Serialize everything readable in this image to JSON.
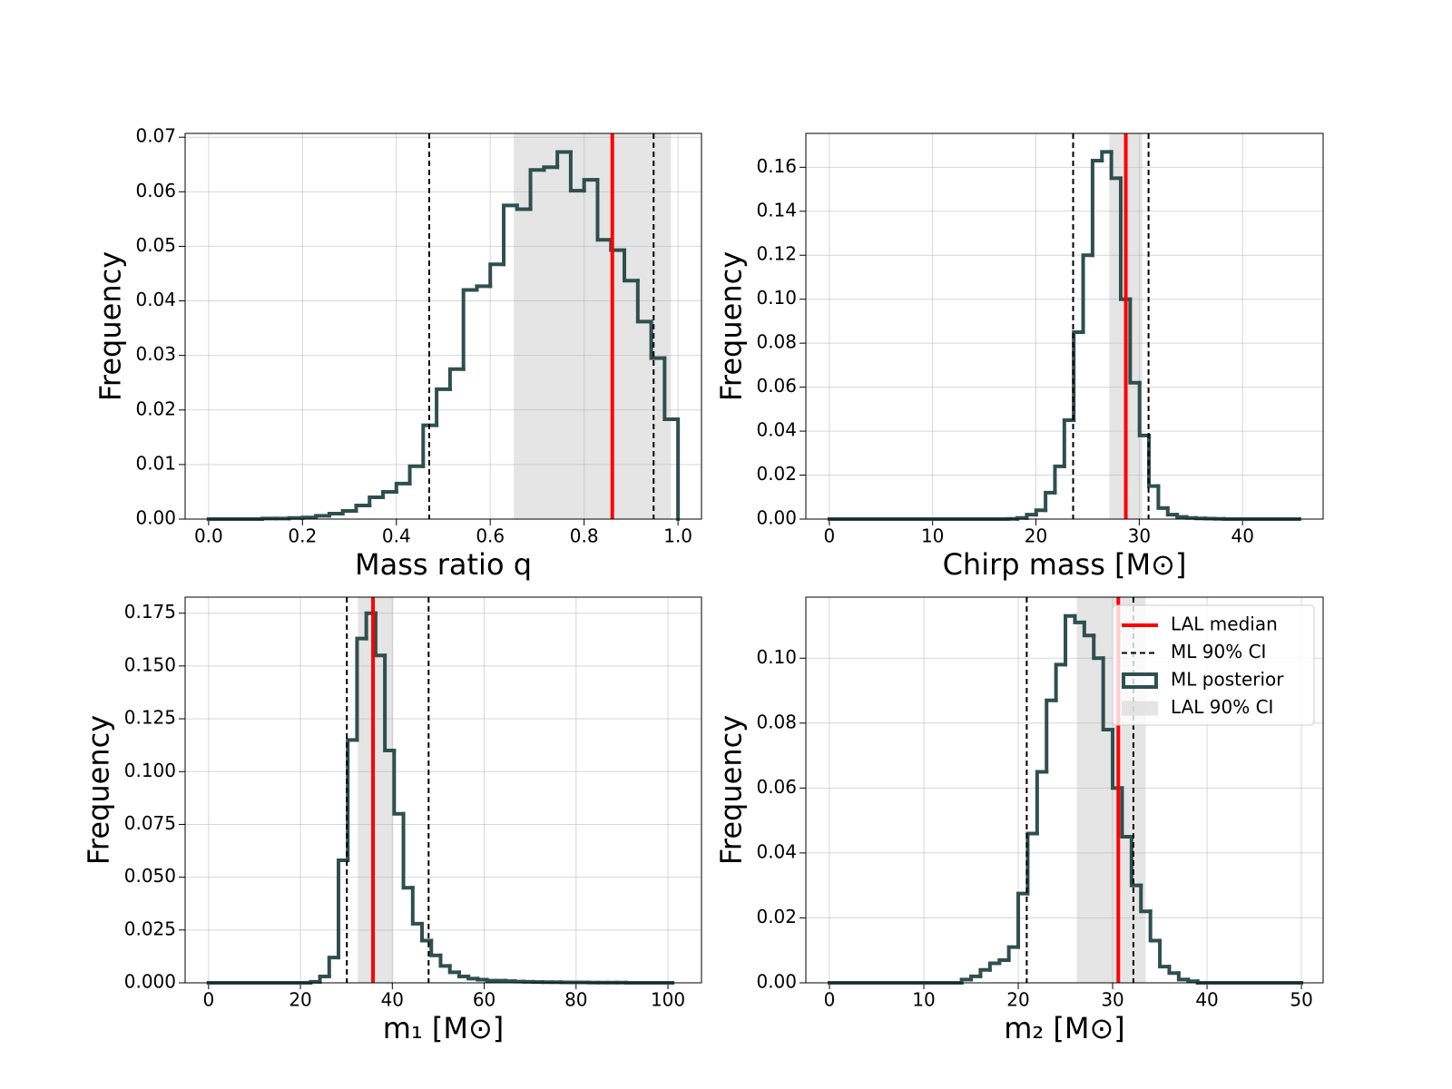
{
  "chart_data": [
    {
      "type": "histogram",
      "xlabel": "Mass ratio q",
      "ylabel": "Frequency",
      "color": "#2f4f4f",
      "grid": true,
      "bins": [
        0,
        0.0286,
        0.0571,
        0.0857,
        0.1143,
        0.1429,
        0.1714,
        0.2,
        0.2286,
        0.2571,
        0.2857,
        0.3143,
        0.3429,
        0.3714,
        0.4,
        0.4286,
        0.4571,
        0.4857,
        0.5143,
        0.5429,
        0.5714,
        0.6,
        0.6286,
        0.6571,
        0.6857,
        0.7143,
        0.7429,
        0.7714,
        0.8,
        0.8286,
        0.8571,
        0.8857,
        0.9143,
        0.9429,
        0.9714,
        1
      ],
      "values": [
        0,
        0,
        0,
        0,
        0.0001,
        0.0001,
        0.0002,
        0.0003,
        0.0006,
        0.001,
        0.0015,
        0.0025,
        0.004,
        0.005,
        0.0065,
        0.0097,
        0.0172,
        0.0238,
        0.0275,
        0.042,
        0.0427,
        0.0467,
        0.0575,
        0.0568,
        0.064,
        0.0645,
        0.0673,
        0.0602,
        0.0622,
        0.0512,
        0.0493,
        0.0437,
        0.0362,
        0.0295,
        0.0183
      ],
      "xlim": [
        -0.05,
        1.05
      ],
      "ylim": [
        0,
        0.0707
      ],
      "xticks": [
        {
          "value": 0,
          "label": "0.0"
        },
        0.2,
        0.4,
        0.6,
        0.8,
        {
          "value": 1,
          "label": "1.0"
        }
      ],
      "yticks": [
        {
          "value": 0,
          "label": "0.00"
        },
        0.01,
        0.02,
        0.03,
        0.04,
        0.05,
        0.06,
        0.07
      ],
      "median": {
        "color": "red",
        "value": 0.86
      },
      "ci": {
        "color": "black",
        "values": [
          0.47,
          0.948
        ]
      },
      "band": {
        "color": "#d3d3d3",
        "values": [
          0.65,
          0.985
        ]
      }
    },
    {
      "type": "histogram",
      "xlabel": "Chirp mass [M⊙]",
      "ylabel": "Frequency",
      "color": "#2f4f4f",
      "grid": true,
      "bins": [
        0,
        0.91,
        1.82,
        2.73,
        3.64,
        4.55,
        5.46,
        6.37,
        7.28,
        8.19,
        9.1,
        10.01,
        10.92,
        11.83,
        12.74,
        13.65,
        14.56,
        15.47,
        16.38,
        17.29,
        18.2,
        19.11,
        20.02,
        20.93,
        21.84,
        22.75,
        23.66,
        24.57,
        25.48,
        26.39,
        27.3,
        28.21,
        29.12,
        30.03,
        30.94,
        31.85,
        32.76,
        33.67,
        34.58,
        35.49,
        36.4,
        37.31,
        38.22,
        39.13,
        40.04,
        40.95,
        41.86,
        42.77,
        43.68,
        44.59,
        45.5
      ],
      "values": [
        0,
        0,
        0,
        0,
        0,
        0,
        0,
        0,
        0,
        0,
        0,
        0,
        0,
        0,
        0,
        0,
        0,
        0,
        0,
        0.0001,
        0.0005,
        0.002,
        0.004,
        0.012,
        0.024,
        0.045,
        0.085,
        0.12,
        0.163,
        0.167,
        0.155,
        0.1,
        0.062,
        0.038,
        0.015,
        0.005,
        0.002,
        0.001,
        0.0005,
        0.0003,
        0.0002,
        0.0001,
        0,
        0,
        0,
        0,
        0,
        0,
        0,
        0
      ],
      "xlim": [
        -2.27,
        47.8
      ],
      "ylim": [
        0,
        0.1754
      ],
      "xticks": [
        0,
        10,
        20,
        30,
        40
      ],
      "yticks": [
        {
          "value": 0,
          "label": "0.00"
        },
        0.02,
        0.04,
        0.06,
        0.08,
        {
          "value": 0.1,
          "label": "0.10"
        },
        0.12,
        0.14,
        0.16
      ],
      "median": {
        "color": "red",
        "value": 28.7
      },
      "ci": {
        "color": "black",
        "values": [
          23.6,
          30.9
        ]
      },
      "band": {
        "color": "#d3d3d3",
        "values": [
          27.1,
          30.3
        ]
      }
    },
    {
      "type": "histogram",
      "xlabel": "m₁ [M⊙]",
      "ylabel": "Frequency",
      "color": "#2f4f4f",
      "grid": true,
      "bins": [
        0,
        2.02,
        4.04,
        6.06,
        8.08,
        10.1,
        12.12,
        14.14,
        16.16,
        18.18,
        20.2,
        22.22,
        24.24,
        26.26,
        28.28,
        30.3,
        32.32,
        34.34,
        36.36,
        38.38,
        40.4,
        42.42,
        44.44,
        46.46,
        48.48,
        50.5,
        52.52,
        54.54,
        56.56,
        58.58,
        60.6,
        62.62,
        64.64,
        66.66,
        68.68,
        70.7,
        72.72,
        74.74,
        76.76,
        78.78,
        80.8,
        82.82,
        84.84,
        86.86,
        88.88,
        90.9,
        92.92,
        94.94,
        96.96,
        98.98,
        101
      ],
      "values": [
        0,
        0,
        0,
        0,
        0,
        0,
        0,
        0,
        0,
        0,
        0,
        0.0005,
        0.003,
        0.012,
        0.058,
        0.115,
        0.163,
        0.175,
        0.155,
        0.11,
        0.08,
        0.045,
        0.028,
        0.02,
        0.013,
        0.008,
        0.005,
        0.003,
        0.002,
        0.0015,
        0.001,
        0.001,
        0.0008,
        0.0006,
        0.0005,
        0.0004,
        0.0003,
        0.0003,
        0.0002,
        0.0002,
        0.0002,
        0.0001,
        0.0001,
        0.0001,
        0.0001,
        0,
        0,
        0,
        0,
        0
      ],
      "xlim": [
        -5.1,
        107.3
      ],
      "ylim": [
        0,
        0.1826
      ],
      "xticks": [
        0,
        20,
        40,
        60,
        80,
        100
      ],
      "yticks": [
        {
          "value": 0,
          "label": "0.000"
        },
        0.025,
        {
          "value": 0.05,
          "label": "0.050"
        },
        0.075,
        {
          "value": 0.1,
          "label": "0.100"
        },
        0.125,
        {
          "value": 0.15,
          "label": "0.150"
        },
        0.175
      ],
      "median": {
        "color": "red",
        "value": 35.8
      },
      "ci": {
        "color": "black",
        "values": [
          30.1,
          47.9
        ]
      },
      "band": {
        "color": "#d3d3d3",
        "values": [
          32.5,
          40.2
        ]
      }
    },
    {
      "type": "histogram",
      "xlabel": "m₂ [M⊙]",
      "ylabel": "Frequency",
      "color": "#2f4f4f",
      "grid": true,
      "name": "ML posterior",
      "legend": "upper right",
      "bins": [
        0,
        1,
        2,
        3,
        4,
        5,
        6,
        7,
        8,
        9,
        10,
        11,
        12,
        13,
        14,
        15,
        16,
        17,
        18,
        19,
        20,
        21,
        22,
        23,
        24,
        25,
        26,
        27,
        28,
        29,
        30,
        31,
        32,
        33,
        34,
        35,
        36,
        37,
        38,
        39,
        40,
        41,
        42,
        43,
        44,
        45,
        46,
        47,
        48,
        49,
        50
      ],
      "values": [
        0,
        0,
        0,
        0,
        0,
        0,
        0,
        0,
        0,
        0,
        0,
        0,
        0,
        0,
        0.001,
        0.002,
        0.004,
        0.006,
        0.007,
        0.011,
        0.0275,
        0.046,
        0.065,
        0.087,
        0.098,
        0.113,
        0.111,
        0.107,
        0.1,
        0.078,
        0.06,
        0.045,
        0.03,
        0.022,
        0.013,
        0.005,
        0.003,
        0.001,
        0.0005,
        0,
        0,
        0,
        0,
        0,
        0,
        0,
        0,
        0,
        0,
        0
      ],
      "xlim": [
        -2.5,
        52.3
      ],
      "ylim": [
        0,
        0.1188
      ],
      "xticks": [
        0,
        10,
        20,
        30,
        40,
        50
      ],
      "yticks": [
        {
          "value": 0,
          "label": "0.00"
        },
        0.02,
        0.04,
        0.06,
        0.08,
        {
          "value": 0.1,
          "label": "0.10"
        }
      ],
      "median": {
        "name": "LAL median",
        "color": "red",
        "value": 30.6
      },
      "ci": {
        "name": "ML 90% CI",
        "color": "black",
        "values": [
          20.9,
          32.2
        ]
      },
      "band": {
        "name": "LAL 90% CI",
        "color": "#d3d3d3",
        "values": [
          26.2,
          33.5
        ]
      }
    }
  ]
}
